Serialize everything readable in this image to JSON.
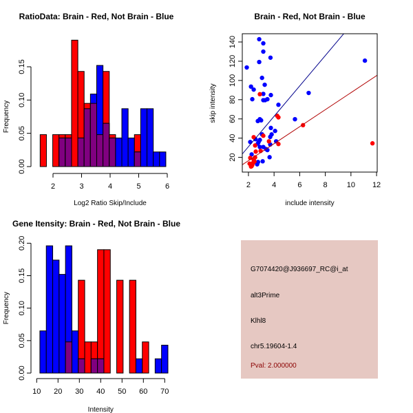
{
  "chart_data": [
    {
      "type": "bar",
      "title": "RatioData: Brain - Red, Not Brain - Blue",
      "xlabel": "Log2 Ratio Skip/Include",
      "ylabel": "Frequency",
      "bin_start": 1.55,
      "bin_width": 0.22,
      "xticks": [
        2,
        3,
        4,
        5,
        6
      ],
      "yticks": [
        "0.00",
        "0.05",
        "0.10",
        "0.15"
      ],
      "ylim": [
        0,
        0.19
      ],
      "series": [
        {
          "name": "Brain",
          "color": "#ff0000",
          "values": [
            0.048,
            0,
            0.048,
            0.048,
            0.048,
            0.19,
            0.143,
            0.095,
            0.095,
            0.048,
            0.143,
            0.048,
            0,
            0,
            0,
            0.048,
            0,
            0,
            0,
            0
          ]
        },
        {
          "name": "Not Brain",
          "color": "#0000ff",
          "values": [
            0,
            0,
            0,
            0.043,
            0.043,
            0,
            0.043,
            0.087,
            0.109,
            0.152,
            0.065,
            0.043,
            0.043,
            0.087,
            0.043,
            0.022,
            0.087,
            0.087,
            0.022,
            0.022
          ]
        }
      ],
      "overlap_color": "#800080"
    },
    {
      "type": "scatter",
      "title": "Brain - Red, Not Brain - Blue",
      "xlabel": "include intensity",
      "ylabel": "skip intensity",
      "xlim": [
        1.52,
        12.05
      ],
      "ylim": [
        4.7,
        148.6
      ],
      "xticks": [
        2,
        4,
        6,
        8,
        10,
        12
      ],
      "yticks": [
        20,
        40,
        60,
        80,
        100,
        120,
        140
      ],
      "series": [
        {
          "name": "Not Brain",
          "color": "#0000ff",
          "points": [
            [
              1.87,
              113.5
            ],
            [
              2.84,
              142.9
            ],
            [
              3.16,
              138.6
            ],
            [
              3.16,
              130
            ],
            [
              3.72,
              123.7
            ],
            [
              2.84,
              119.2
            ],
            [
              11.09,
              120.6
            ],
            [
              3.06,
              102.7
            ],
            [
              2.2,
              93.6
            ],
            [
              2.41,
              90.5
            ],
            [
              3.27,
              95.5
            ],
            [
              3.16,
              86
            ],
            [
              6.7,
              87
            ],
            [
              2.3,
              80.5
            ],
            [
              3.16,
              79.5
            ],
            [
              3.3,
              79.5
            ],
            [
              3.48,
              80.5
            ],
            [
              3.75,
              84.8
            ],
            [
              4.34,
              74.7
            ],
            [
              5.63,
              59.7
            ],
            [
              2.73,
              57.8
            ],
            [
              2.89,
              59.7
            ],
            [
              2.99,
              58.5
            ],
            [
              3.75,
              50.6
            ],
            [
              4.08,
              47.5
            ],
            [
              3.81,
              43.9
            ],
            [
              3.7,
              41.3
            ],
            [
              3.06,
              43.9
            ],
            [
              4.16,
              36.7
            ],
            [
              2.14,
              36
            ],
            [
              2.55,
              38.9
            ],
            [
              2.89,
              38.2
            ],
            [
              2.79,
              35.8
            ],
            [
              2.73,
              34.3
            ],
            [
              3.7,
              33.4
            ],
            [
              2.89,
              30.8
            ],
            [
              3.16,
              30.8
            ],
            [
              3.38,
              28.6
            ],
            [
              3.48,
              27.6
            ],
            [
              2.25,
              23.1
            ],
            [
              2.75,
              15.2
            ],
            [
              2.68,
              12.8
            ],
            [
              3.11,
              15.9
            ],
            [
              3.65,
              20.2
            ]
          ],
          "fit": {
            "slope": 15.8,
            "intercept": -0.5
          }
        },
        {
          "name": "Brain",
          "color": "#ff0000",
          "points": [
            [
              2.89,
              85.7
            ],
            [
              4.24,
              63.3
            ],
            [
              4.34,
              61.6
            ],
            [
              6.26,
              53.5
            ],
            [
              3.16,
              42.5
            ],
            [
              2.41,
              41
            ],
            [
              3.6,
              36.7
            ],
            [
              4.34,
              33.9
            ],
            [
              2.52,
              32.4
            ],
            [
              2.95,
              26.7
            ],
            [
              2.57,
              26
            ],
            [
              2.14,
              19.5
            ],
            [
              2.52,
              20
            ],
            [
              2.41,
              17.6
            ],
            [
              2.47,
              15.7
            ],
            [
              2.36,
              14.3
            ],
            [
              2.09,
              13.5
            ],
            [
              2.3,
              12.1
            ],
            [
              2.2,
              10.4
            ],
            [
              2.25,
              10.9
            ],
            [
              11.68,
              34.6
            ]
          ],
          "fit": {
            "slope": 8.84,
            "intercept": -1.1
          }
        }
      ]
    },
    {
      "type": "bar",
      "title": "Gene Itensity: Brain - Red, Not Brain - Blue",
      "xlabel": "Intensity",
      "ylabel": "Frequency",
      "bin_start": 11.5,
      "bin_width": 3,
      "xticks": [
        10,
        20,
        30,
        40,
        50,
        60,
        70
      ],
      "yticks": [
        "0.00",
        "0.05",
        "0.10",
        "0.15",
        "0.20"
      ],
      "ylim": [
        0,
        0.2
      ],
      "series": [
        {
          "name": "Brain",
          "color": "#ff0000",
          "values": [
            0,
            0,
            0,
            0,
            0.048,
            0,
            0.143,
            0.048,
            0.048,
            0.19,
            0.19,
            0,
            0.143,
            0,
            0.143,
            0,
            0.048,
            0,
            0,
            0
          ]
        },
        {
          "name": "Not Brain",
          "color": "#0000ff",
          "values": [
            0.065,
            0.196,
            0.174,
            0.152,
            0.196,
            0.065,
            0.022,
            0,
            0.022,
            0.022,
            0,
            0,
            0,
            0,
            0,
            0.022,
            0,
            0,
            0.022,
            0.043
          ]
        }
      ],
      "overlap_color": "#800080"
    }
  ],
  "info": {
    "probe": "G7074420@J936697_RC@i_at",
    "event": "alt3Prime",
    "gene": "Klhl8",
    "location": "chr5.19604-1.4",
    "pval": "Pval: 2.000000",
    "pval_color": "#8b0000",
    "background": "#e6c8c2"
  }
}
